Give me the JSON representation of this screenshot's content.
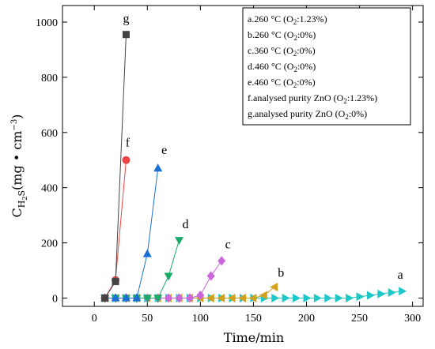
{
  "chart_data": {
    "type": "line",
    "xlabel": "Time/min",
    "ylabel": "C",
    "ylabel_sub": "H",
    "ylabel_subsub": "2",
    "ylabel_sub2": "S",
    "ylabel_unit": "(mg • cm",
    "ylabel_unit_sup": "−3",
    "ylabel_unit_close": ")",
    "xlim": [
      -30,
      310
    ],
    "ylim": [
      -30,
      1060
    ],
    "xticks": [
      0,
      50,
      100,
      150,
      200,
      250,
      300
    ],
    "yticks": [
      0,
      200,
      400,
      600,
      800,
      1000
    ],
    "legend": {
      "placement": "top-right",
      "entries": [
        {
          "pre": "a.260 °C (O",
          "sub": "2",
          "post": ":1.23%)"
        },
        {
          "pre": "b.260 °C (O",
          "sub": "2",
          "post": ":0%)"
        },
        {
          "pre": "c.360 °C (O",
          "sub": "2",
          "post": ":0%)"
        },
        {
          "pre": "d.460 °C (O",
          "sub": "2",
          "post": ":0%)"
        },
        {
          "pre": "e.460 °C (O",
          "sub": "2",
          "post": ":0%)"
        },
        {
          "pre": "f.analysed purity ZnO (O",
          "sub": "2",
          "post": ":1.23%)"
        },
        {
          "pre": "g.analysed purity ZnO (O",
          "sub": "2",
          "post": ":0%)"
        }
      ]
    },
    "series": [
      {
        "letter": "a",
        "color": "#1ec8c8",
        "marker": "triangle-right",
        "x": [
          10,
          20,
          30,
          40,
          50,
          60,
          70,
          80,
          90,
          100,
          110,
          120,
          130,
          140,
          150,
          160,
          170,
          180,
          190,
          200,
          210,
          220,
          230,
          240,
          250,
          260,
          270,
          280,
          290
        ],
        "y": [
          0,
          0,
          0,
          0,
          0,
          0,
          0,
          0,
          0,
          0,
          0,
          0,
          0,
          0,
          0,
          0,
          0,
          0,
          0,
          0,
          0,
          0,
          0,
          0,
          5,
          10,
          15,
          20,
          25
        ]
      },
      {
        "letter": "b",
        "color": "#d4a020",
        "marker": "triangle-left",
        "x": [
          10,
          20,
          30,
          40,
          50,
          60,
          70,
          80,
          90,
          100,
          110,
          120,
          130,
          140,
          150,
          160,
          170
        ],
        "y": [
          0,
          0,
          0,
          0,
          0,
          0,
          0,
          0,
          0,
          0,
          0,
          0,
          0,
          0,
          0,
          10,
          40
        ]
      },
      {
        "letter": "c",
        "color": "#cc66dd",
        "marker": "diamond",
        "x": [
          10,
          20,
          30,
          40,
          50,
          60,
          70,
          80,
          90,
          100,
          110,
          120
        ],
        "y": [
          0,
          0,
          0,
          0,
          0,
          0,
          0,
          0,
          0,
          10,
          80,
          135
        ]
      },
      {
        "letter": "d",
        "color": "#1aaa66",
        "marker": "triangle-down",
        "x": [
          10,
          20,
          30,
          40,
          50,
          60,
          70,
          80
        ],
        "y": [
          0,
          0,
          0,
          0,
          0,
          0,
          80,
          210
        ]
      },
      {
        "letter": "e",
        "color": "#1a6fd4",
        "marker": "triangle-up",
        "x": [
          10,
          20,
          30,
          40,
          50,
          60
        ],
        "y": [
          0,
          0,
          0,
          0,
          160,
          470
        ]
      },
      {
        "letter": "f",
        "color": "#ee4444",
        "marker": "circle",
        "x": [
          10,
          20,
          30
        ],
        "y": [
          0,
          65,
          500
        ]
      },
      {
        "letter": "g",
        "color": "#444444",
        "marker": "square",
        "x": [
          10,
          20,
          30
        ],
        "y": [
          0,
          60,
          955
        ]
      }
    ]
  }
}
